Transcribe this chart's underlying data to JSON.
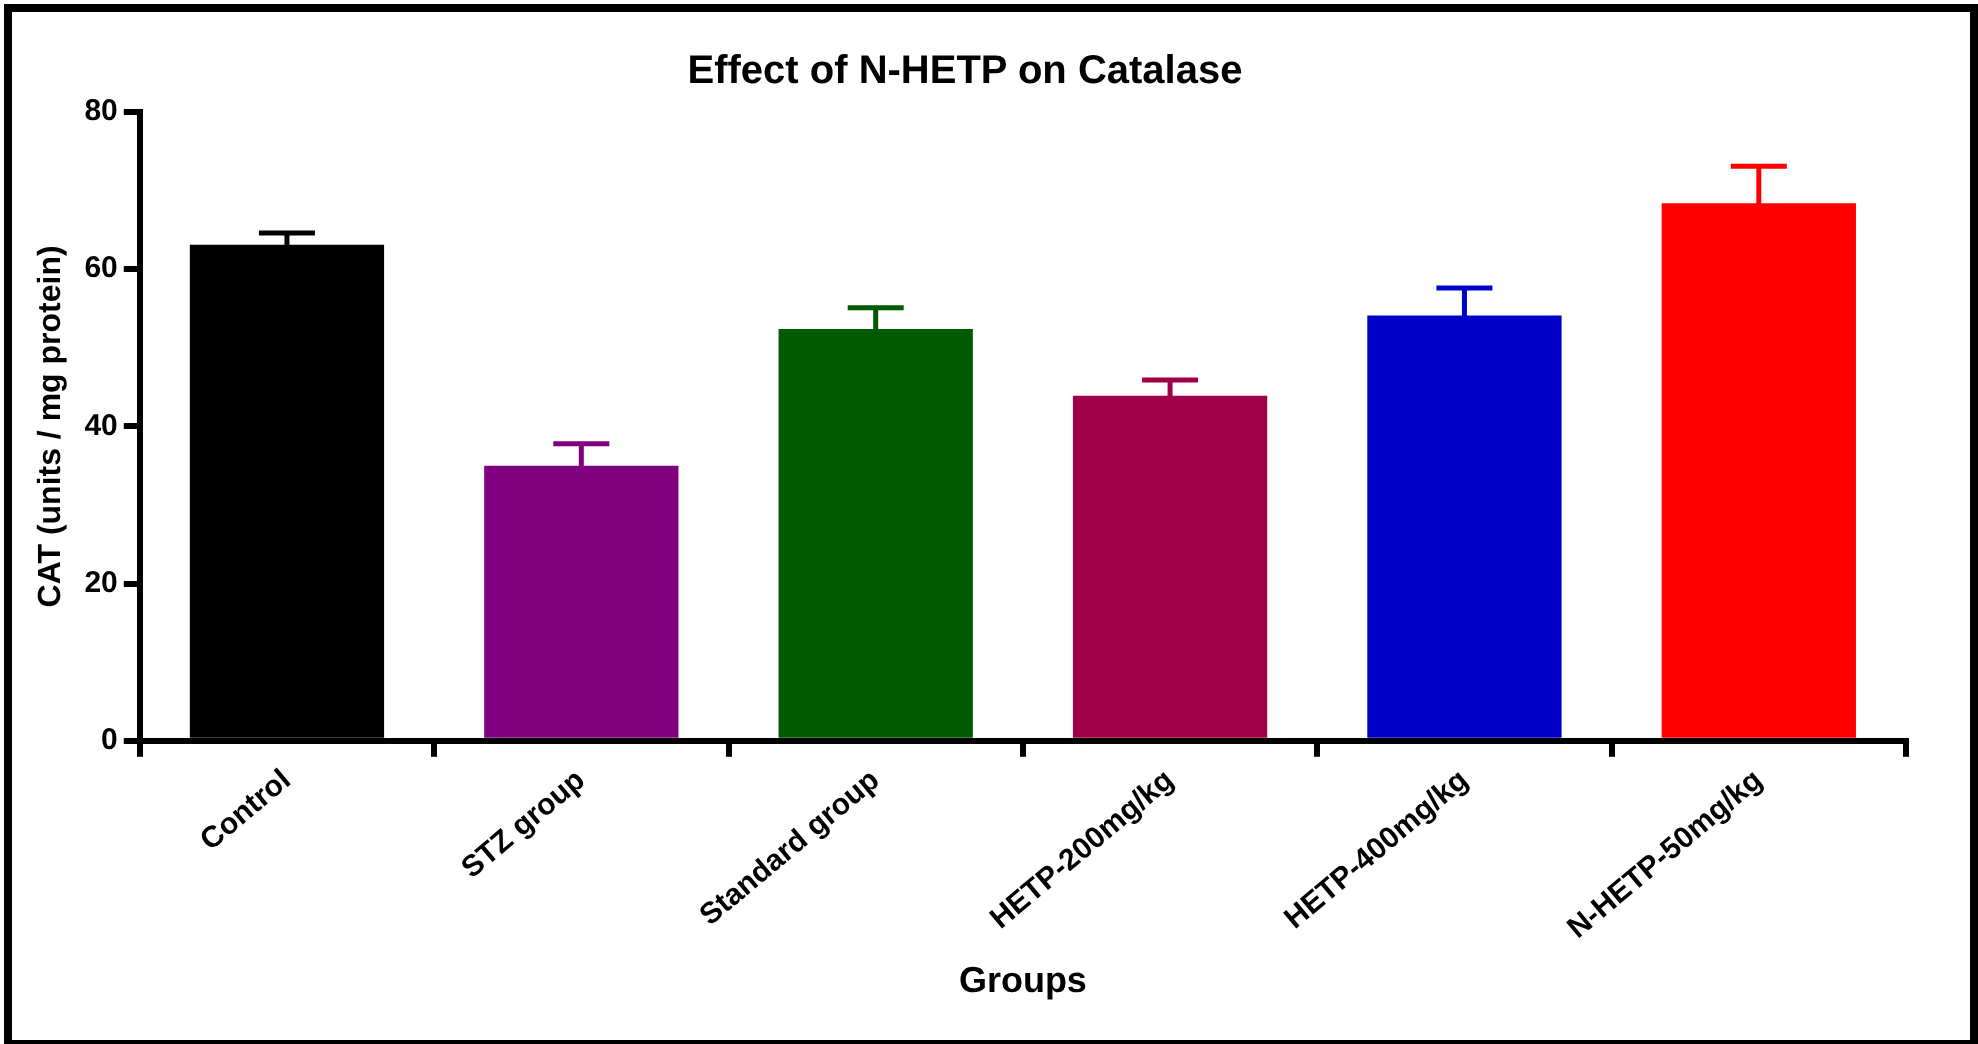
{
  "chart_data": {
    "type": "bar",
    "title": "Effect of N-HETP on Catalase",
    "xlabel": "Groups",
    "ylabel": "CAT (units / mg protein)",
    "categories": [
      "Control",
      "STZ group",
      "Standard group",
      "HETP-200mg/kg",
      "HETP-400mg/kg",
      "N-HETP-50mg/kg"
    ],
    "values": [
      63.1,
      35.0,
      52.4,
      43.9,
      54.1,
      68.4
    ],
    "colors": [
      "#000000",
      "#800080",
      "#005a00",
      "#a0004a",
      "#0000c8",
      "#ff0000"
    ],
    "errors": [
      1.5,
      2.8,
      2.7,
      2.0,
      3.5,
      4.7
    ],
    "ylim": [
      0,
      80
    ],
    "yticks": [
      0,
      20,
      40,
      60,
      80
    ],
    "grid": false,
    "legend": false
  }
}
